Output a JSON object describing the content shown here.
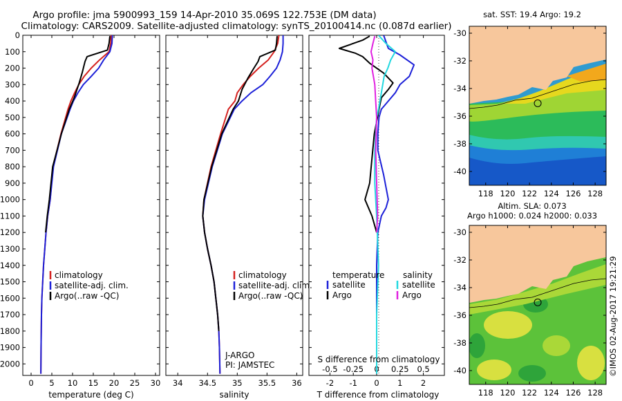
{
  "header": {
    "line1": "Argo profile: jma 5900993_159 14-Apr-2010 35.069S 122.753E (DM data)",
    "line2": "Climatology: CARS2009. Satellite-adjusted climatology: synTS_20100414.nc (0.087d earlier)"
  },
  "colors": {
    "climatology": "#d4201e",
    "satellite": "#1c20d8",
    "argo": "#000000",
    "sat_salinity": "#22d8e0",
    "argo_salinity": "#e020e0",
    "land": "#f7c79c"
  },
  "depth_ticks": [
    "0",
    "100",
    "200",
    "300",
    "400",
    "500",
    "600",
    "700",
    "800",
    "900",
    "1000",
    "1100",
    "1200",
    "1300",
    "1400",
    "1500",
    "1600",
    "1700",
    "1800",
    "1900",
    "2000"
  ],
  "panels": {
    "temperature": {
      "xlabel": "temperature (deg C)",
      "xticks": [
        "0",
        "5",
        "10",
        "15",
        "20",
        "25",
        "30"
      ],
      "legend": [
        "climatology",
        "satellite-adj. clim.",
        "Argo(..raw -QC)"
      ]
    },
    "salinity": {
      "xlabel": "salinity",
      "xticks": [
        "34",
        "34.5",
        "35",
        "35.5",
        "36"
      ],
      "legend": [
        "climatology",
        "satellite-adj. clim.",
        "Argo(..raw -QC)"
      ],
      "annotation1": "J-ARGO",
      "annotation2": "PI: JAMSTEC"
    },
    "difference": {
      "xlabel": "T difference from climatology",
      "top_axis_label": "S difference from climatology",
      "t_xticks": [
        "-2",
        "-1",
        "0",
        "1",
        "2"
      ],
      "s_xticks": [
        "-0.5",
        "-0.25",
        "0",
        "0.25",
        "0.5"
      ],
      "legend_temperature_title": "temperature",
      "legend_salinity_title": "salinity",
      "legend_satellite": "satellite",
      "legend_argo": "Argo"
    }
  },
  "maps": {
    "sst_title": "sat. SST: 19.4  Argo: 19.2",
    "sla_title1": "Altim. SLA: 0.073",
    "sla_title2": "Argo h1000: 0.024 h2000: 0.033",
    "lat_ticks": [
      "-30",
      "-32",
      "-34",
      "-36",
      "-38",
      "-40"
    ],
    "lon_ticks": [
      "118",
      "120",
      "122",
      "124",
      "126",
      "128"
    ],
    "float_position": {
      "lon": 122.753,
      "lat": -35.069
    }
  },
  "credit": "©IMOS 02-Aug-2017 19:21:29",
  "chart_data": [
    {
      "type": "line",
      "title": "",
      "xlabel": "temperature (deg C)",
      "ylabel": "",
      "xlim": [
        -2,
        31
      ],
      "ylim": [
        2070,
        0
      ],
      "series": [
        {
          "name": "climatology",
          "color": "#d4201e",
          "x": [
            19.3,
            19.2,
            18.8,
            16.5,
            14.5,
            12.8,
            11.5,
            10.5,
            9.6,
            8.9,
            7.2,
            5.3,
            4.6,
            4.0,
            3.6,
            3.3,
            3.0,
            2.8,
            2.6,
            2.5,
            2.45,
            2.4,
            2.35
          ],
          "y": [
            0,
            50,
            100,
            150,
            200,
            250,
            300,
            350,
            400,
            450,
            600,
            800,
            1000,
            1100,
            1200,
            1300,
            1400,
            1500,
            1600,
            1700,
            1800,
            1900,
            2060
          ]
        },
        {
          "name": "satellite-adj. clim.",
          "color": "#1c20d8",
          "x": [
            19.6,
            19.5,
            19.0,
            17.5,
            16.3,
            14.5,
            12.6,
            11.3,
            10.2,
            9.4,
            7.3,
            5.4,
            4.6,
            4.0,
            3.6,
            3.3,
            3.0,
            2.8,
            2.6,
            2.5,
            2.45,
            2.4,
            2.35
          ],
          "y": [
            0,
            50,
            100,
            150,
            200,
            250,
            300,
            350,
            400,
            450,
            600,
            800,
            1000,
            1100,
            1200,
            1300,
            1400,
            1500,
            1600,
            1700,
            1800,
            1900,
            2060
          ]
        },
        {
          "name": "Argo(..raw -QC)",
          "color": "#000000",
          "x": [
            19.0,
            18.8,
            18.4,
            13.5,
            13.0,
            12.8,
            12.3,
            11.6,
            10.4,
            9.2,
            7.3,
            5.2,
            4.4,
            3.9,
            3.5
          ],
          "y": [
            5,
            50,
            90,
            130,
            160,
            180,
            230,
            290,
            380,
            450,
            600,
            800,
            1000,
            1100,
            1200
          ]
        }
      ]
    },
    {
      "type": "line",
      "title": "",
      "xlabel": "salinity",
      "ylabel": "",
      "xlim": [
        33.8,
        36.1
      ],
      "ylim": [
        2070,
        0
      ],
      "series": [
        {
          "name": "climatology",
          "color": "#d4201e",
          "x": [
            35.7,
            35.68,
            35.62,
            35.52,
            35.36,
            35.22,
            35.1,
            35.0,
            34.96,
            34.85,
            34.72,
            34.56,
            34.44,
            34.42,
            34.45,
            34.5,
            34.56,
            34.61,
            34.64,
            34.67,
            34.69,
            34.7,
            34.71
          ],
          "y": [
            0,
            50,
            100,
            150,
            200,
            250,
            300,
            350,
            400,
            450,
            600,
            800,
            1000,
            1100,
            1200,
            1300,
            1400,
            1500,
            1600,
            1700,
            1800,
            1900,
            2060
          ]
        },
        {
          "name": "satellite-adj. clim.",
          "color": "#1c20d8",
          "x": [
            35.77,
            35.77,
            35.76,
            35.72,
            35.66,
            35.55,
            35.43,
            35.23,
            35.08,
            34.95,
            34.75,
            34.58,
            34.45,
            34.42,
            34.45,
            34.5,
            34.56,
            34.61,
            34.64,
            34.67,
            34.69,
            34.7,
            34.71
          ],
          "y": [
            0,
            50,
            100,
            150,
            200,
            250,
            300,
            350,
            400,
            450,
            600,
            800,
            1000,
            1100,
            1200,
            1300,
            1400,
            1500,
            1600,
            1700,
            1800,
            1900,
            2060
          ]
        },
        {
          "name": "Argo(..raw -QC)",
          "color": "#000000",
          "x": [
            35.67,
            35.66,
            35.64,
            35.38,
            35.35,
            35.28,
            35.18,
            35.08,
            35.02,
            34.93,
            34.74,
            34.57,
            34.44,
            34.42,
            34.45,
            34.5,
            34.56,
            34.61,
            34.64,
            34.67,
            34.69
          ],
          "y": [
            5,
            50,
            90,
            130,
            160,
            200,
            260,
            330,
            400,
            450,
            600,
            800,
            1000,
            1100,
            1200,
            1300,
            1400,
            1500,
            1600,
            1700,
            1800
          ]
        }
      ]
    },
    {
      "type": "line",
      "title": "",
      "xlabel": "T difference from climatology",
      "ylabel": "",
      "xlim": [
        -2.9,
        2.9
      ],
      "ylim": [
        2070,
        0
      ],
      "top_axis": {
        "label": "S difference from climatology",
        "xlim": [
          -0.725,
          0.725
        ]
      },
      "series": [
        {
          "name": "satellite",
          "group": "temperature",
          "color": "#1c20d8",
          "x": [
            0.3,
            0.4,
            0.5,
            1.0,
            1.6,
            1.4,
            1.0,
            0.8,
            0.5,
            0.2,
            0.1,
            0.05,
            0.05,
            0.3,
            0.5,
            0.4,
            0.2,
            0.05,
            0,
            0,
            0
          ],
          "y": [
            0,
            40,
            80,
            120,
            180,
            250,
            300,
            350,
            400,
            450,
            500,
            600,
            700,
            850,
            1000,
            1050,
            1100,
            1200,
            1400,
            1700,
            2060
          ]
        },
        {
          "name": "Argo",
          "group": "temperature",
          "color": "#000000",
          "x": [
            -0.3,
            -0.6,
            -1.6,
            -0.9,
            -0.6,
            -0.3,
            0.3,
            0.7,
            0.5,
            0.2,
            0.1,
            -0.1,
            -0.2,
            -0.3,
            -0.5,
            -0.2,
            0
          ],
          "y": [
            5,
            30,
            80,
            110,
            130,
            170,
            230,
            290,
            330,
            380,
            450,
            600,
            750,
            900,
            1000,
            1100,
            1200
          ]
        },
        {
          "name": "satellite",
          "group": "salinity",
          "color": "#22d8e0",
          "x": [
            0.02,
            0.1,
            0.2,
            0.15,
            0.12,
            0.08,
            0.05,
            0.02,
            0.0,
            -0.02,
            -0.02,
            0,
            0.02,
            0,
            0
          ],
          "y": [
            0,
            50,
            100,
            150,
            200,
            250,
            350,
            450,
            500,
            700,
            900,
            1100,
            1400,
            1700,
            2060
          ]
        },
        {
          "name": "Argo",
          "group": "salinity",
          "color": "#e020e0",
          "x": [
            -0.02,
            -0.04,
            -0.06,
            -0.04,
            -0.05,
            -0.02,
            -0.01,
            0,
            -0.01,
            0,
            0.01,
            0
          ],
          "y": [
            5,
            50,
            100,
            150,
            200,
            300,
            400,
            500,
            700,
            900,
            1100,
            1200
          ]
        }
      ]
    },
    {
      "type": "heatmap",
      "title": "sat. SST: 19.4  Argo: 19.2",
      "xlabel": "",
      "ylabel": "",
      "xlim": [
        116.5,
        129
      ],
      "ylim": [
        -41,
        -29.5
      ],
      "marker": {
        "lon": 122.753,
        "lat": -35.069
      }
    },
    {
      "type": "heatmap",
      "title": "Altim. SLA: 0.073 / Argo h1000: 0.024 h2000: 0.033",
      "xlabel": "",
      "ylabel": "",
      "xlim": [
        116.5,
        129
      ],
      "ylim": [
        -41,
        -29.5
      ],
      "marker": {
        "lon": 122.753,
        "lat": -35.069
      }
    }
  ]
}
